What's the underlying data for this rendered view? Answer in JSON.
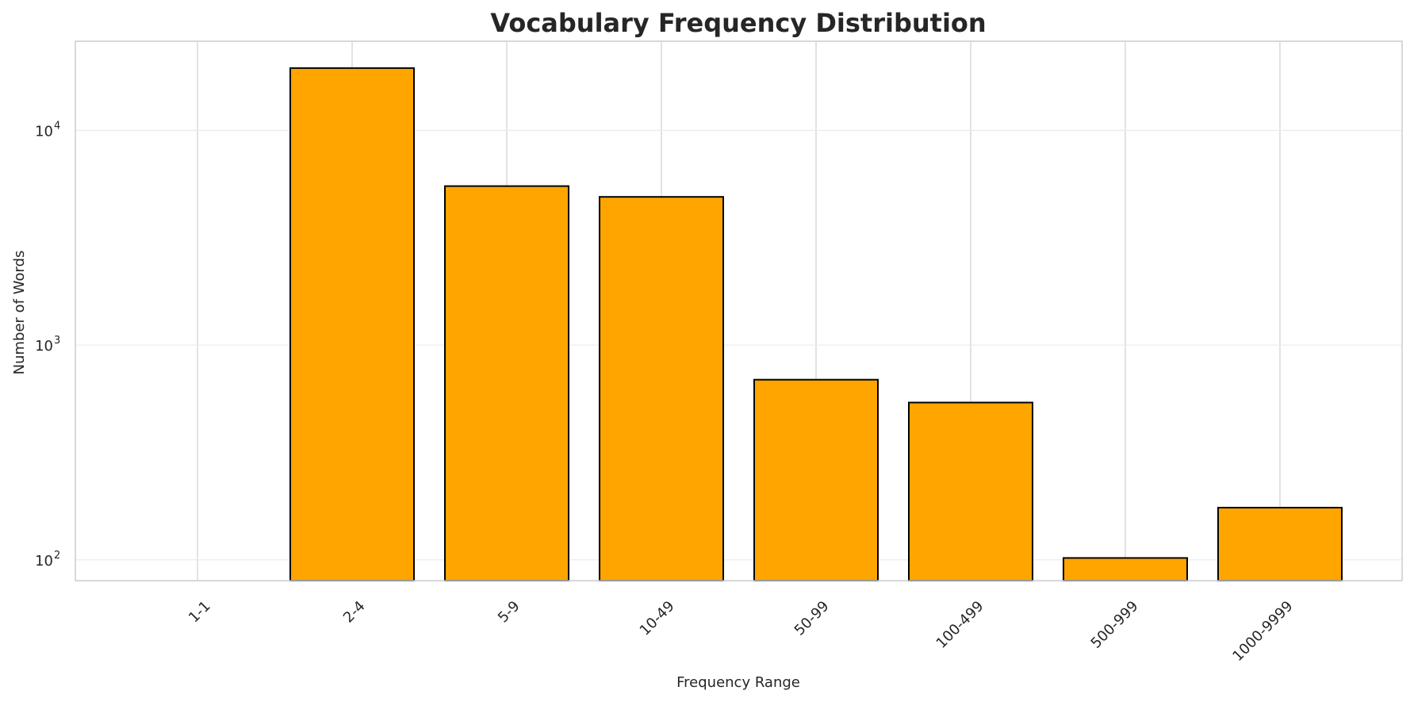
{
  "chart_data": {
    "type": "bar",
    "title": "Vocabulary Frequency Distribution",
    "xlabel": "Frequency Range",
    "ylabel": "Number of Words",
    "yscale": "log",
    "ylim": [
      80,
      26000
    ],
    "categories": [
      "1-1",
      "2-4",
      "5-9",
      "10-49",
      "50-99",
      "100-499",
      "500-999",
      "1000-9999"
    ],
    "values": [
      80,
      19500,
      5500,
      4900,
      690,
      540,
      102,
      175
    ],
    "ytick_labels": [
      {
        "value": 100,
        "base": "10",
        "exp": "2"
      },
      {
        "value": 1000,
        "base": "10",
        "exp": "3"
      },
      {
        "value": 10000,
        "base": "10",
        "exp": "4"
      }
    ],
    "grid": true,
    "colors": {
      "bar_fill": "#FFA500",
      "bar_edge": "#000000",
      "grid": "#d9d9d9",
      "spine": "#cccccc",
      "text": "#262626"
    }
  }
}
